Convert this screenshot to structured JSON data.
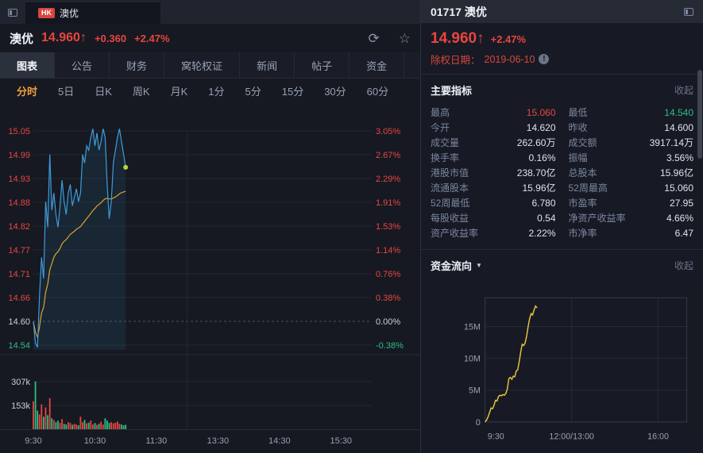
{
  "colors": {
    "up": "#e8453f",
    "down": "#2ebd85",
    "accent": "#f0a03c",
    "blue_line": "#3f9bd8",
    "avg_line": "#d9a62e",
    "flow_line": "#e8c43c",
    "dot": "#b8d437"
  },
  "icons": {
    "refresh": "⟳",
    "star": "☆",
    "caret": "▼",
    "info": "!"
  },
  "top_bar": {
    "market_badge": "HK",
    "tab_title": "澳优"
  },
  "header": {
    "name": "澳优",
    "price": "14.960",
    "arrow": "↑",
    "change": "+0.360",
    "change_pct": "+2.47%"
  },
  "nav_tabs": [
    {
      "label": "图表",
      "active": true
    },
    {
      "label": "公告",
      "active": false
    },
    {
      "label": "财务",
      "active": false
    },
    {
      "label": "窝轮权证",
      "active": false
    },
    {
      "label": "新闻",
      "active": false
    },
    {
      "label": "帖子",
      "active": false
    },
    {
      "label": "资金",
      "active": false
    }
  ],
  "period_tabs": [
    {
      "label": "分时",
      "active": true
    },
    {
      "label": "5日",
      "active": false
    },
    {
      "label": "日K",
      "active": false
    },
    {
      "label": "周K",
      "active": false
    },
    {
      "label": "月K",
      "active": false
    },
    {
      "label": "1分",
      "active": false
    },
    {
      "label": "5分",
      "active": false
    },
    {
      "label": "15分",
      "active": false
    },
    {
      "label": "30分",
      "active": false
    },
    {
      "label": "60分",
      "active": false
    }
  ],
  "right_panel": {
    "code_title": "01717 澳优",
    "price": "14.960",
    "arrow": "↑",
    "change_pct": "+2.47%",
    "ex_right_label": "除权日期：",
    "ex_right_date": "2019-06-10",
    "indicators_title": "主要指标",
    "indicators_collapse": "收起",
    "flow_title": "资金流向",
    "flow_collapse": "收起",
    "indicators": [
      {
        "l1": "最高",
        "v1": "15.060",
        "c1": "up",
        "l2": "最低",
        "v2": "14.540",
        "c2": "down"
      },
      {
        "l1": "今开",
        "v1": "14.620",
        "c1": "",
        "l2": "昨收",
        "v2": "14.600",
        "c2": ""
      },
      {
        "l1": "成交量",
        "v1": "262.60万",
        "c1": "",
        "l2": "成交额",
        "v2": "3917.14万",
        "c2": ""
      },
      {
        "l1": "换手率",
        "v1": "0.16%",
        "c1": "",
        "l2": "振幅",
        "v2": "3.56%",
        "c2": ""
      },
      {
        "l1": "港股市值",
        "v1": "238.70亿",
        "c1": "",
        "l2": "总股本",
        "v2": "15.96亿",
        "c2": ""
      },
      {
        "l1": "流通股本",
        "v1": "15.96亿",
        "c1": "",
        "l2": "52周最高",
        "v2": "15.060",
        "c2": ""
      },
      {
        "l1": "52周最低",
        "v1": "6.780",
        "c1": "",
        "l2": "市盈率",
        "v2": "27.95",
        "c2": ""
      },
      {
        "l1": "每股收益",
        "v1": "0.54",
        "c1": "",
        "l2": "净资产收益率",
        "v2": "4.66%",
        "c2": ""
      },
      {
        "l1": "资产收益率",
        "v1": "2.22%",
        "c1": "",
        "l2": "市净率",
        "v2": "6.47",
        "c2": ""
      }
    ]
  },
  "chart_data": [
    {
      "type": "line",
      "name": "intraday-price",
      "title": "分时",
      "prev_close": 14.6,
      "session_minutes": 330,
      "minutes_per_point": 2,
      "y_top": 15.045,
      "y_bottom": 14.545,
      "y_left_labels": [
        "15.05",
        "14.99",
        "14.93",
        "14.88",
        "14.82",
        "14.77",
        "14.71",
        "14.66",
        "14.60",
        "14.54"
      ],
      "y_right_labels": [
        "3.05%",
        "2.67%",
        "2.29%",
        "1.91%",
        "1.53%",
        "1.14%",
        "0.76%",
        "0.38%",
        "0.00%",
        "-0.38%"
      ],
      "x_labels": [
        "9:30",
        "10:30",
        "11:30",
        "13:30",
        "14:30",
        "15:30"
      ],
      "x_label_minutes": [
        0,
        60,
        120,
        180,
        240,
        300
      ],
      "prices": [
        14.6,
        14.55,
        14.54,
        14.66,
        14.75,
        14.7,
        14.88,
        14.82,
        14.99,
        14.86,
        14.9,
        14.85,
        14.82,
        14.87,
        14.93,
        14.88,
        14.85,
        14.9,
        14.92,
        14.87,
        14.89,
        14.91,
        14.88,
        14.9,
        14.99,
        14.97,
        15.01,
        15.0,
        15.03,
        15.05,
        15.01,
        15.04,
        15.0,
        15.02,
        15.05,
        15.03,
        14.92,
        14.84,
        14.88,
        14.97,
        15.0,
        15.03,
        15.05,
        15.02,
        14.99,
        14.96
      ],
      "volumes_k": [
        180,
        307,
        120,
        95,
        160,
        80,
        140,
        90,
        200,
        70,
        60,
        45,
        55,
        40,
        65,
        35,
        30,
        45,
        40,
        28,
        35,
        30,
        25,
        80,
        45,
        60,
        38,
        42,
        55,
        30,
        40,
        28,
        35,
        48,
        30,
        70,
        55,
        40,
        45,
        38,
        42,
        50,
        35,
        30,
        25,
        28
      ],
      "volume_grid": [
        {
          "label": "307k",
          "v": 307
        },
        {
          "label": "153k",
          "v": 153
        }
      ],
      "volume_max_k": 460
    },
    {
      "type": "line",
      "name": "fund-flow",
      "title": "资金流向",
      "y_labels": [
        "15M",
        "10M",
        "5M",
        "0"
      ],
      "y_values": [
        15,
        10,
        5,
        0
      ],
      "y_max": 19.5,
      "x_labels": [
        "9:30",
        "12:00/13:00",
        "16:00"
      ],
      "values_m": [
        0,
        0.3,
        0.8,
        1.5,
        2.2,
        2.1,
        2.6,
        3.4,
        3.3,
        4.0,
        4.2,
        4.1,
        4.3,
        4.2,
        4.5,
        5.2,
        6.8,
        7.0,
        6.7,
        7.2,
        7.1,
        8.0,
        8.2,
        9.5,
        11.0,
        12.2,
        12.0,
        12.4,
        13.5,
        15.0,
        16.2,
        17.0,
        16.8,
        17.6,
        18.2,
        17.9
      ],
      "data_fraction": 0.3
    }
  ]
}
